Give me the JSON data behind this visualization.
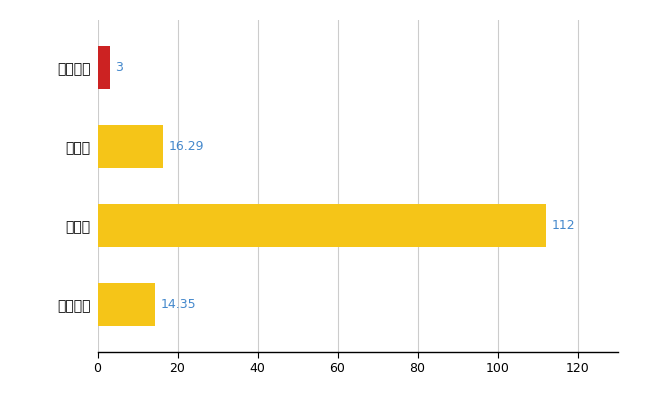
{
  "categories": [
    "久米南町",
    "県平均",
    "県最大",
    "全国平均"
  ],
  "values": [
    3,
    16.29,
    112,
    14.35
  ],
  "bar_colors": [
    "#cc2222",
    "#f5c518",
    "#f5c518",
    "#f5c518"
  ],
  "value_labels": [
    "3",
    "16.29",
    "112",
    "14.35"
  ],
  "label_color": "#4488cc",
  "xlim": [
    0,
    130
  ],
  "xticks": [
    0,
    20,
    40,
    60,
    80,
    100,
    120
  ],
  "grid_color": "#cccccc",
  "background_color": "#ffffff",
  "bar_height": 0.55
}
